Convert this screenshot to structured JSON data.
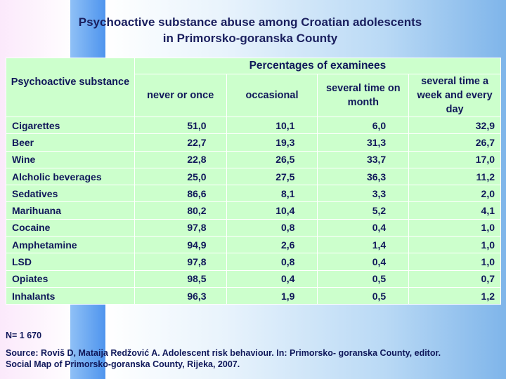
{
  "title": {
    "line1": "Psychoactive substance abuse among Croatian adolescents",
    "line2": "in Primorsko-goranska County"
  },
  "table": {
    "substance_header": "Psychoactive substance",
    "group_header": "Percentages of examinees",
    "columns": [
      "never or once",
      "occasional",
      "several time on month",
      "several time a week and every day"
    ],
    "rows": [
      {
        "name": "Cigarettes",
        "values": [
          "51,0",
          "10,1",
          "6,0",
          "32,9"
        ]
      },
      {
        "name": "Beer",
        "values": [
          "22,7",
          "19,3",
          "31,3",
          "26,7"
        ]
      },
      {
        "name": "Wine",
        "values": [
          "22,8",
          "26,5",
          "33,7",
          "17,0"
        ]
      },
      {
        "name": "Alcholic beverages",
        "values": [
          "25,0",
          "27,5",
          "36,3",
          "11,2"
        ]
      },
      {
        "name": "Sedatives",
        "values": [
          "86,6",
          "8,1",
          "3,3",
          "2,0"
        ]
      },
      {
        "name": "Marihuana",
        "values": [
          "80,2",
          "10,4",
          "5,2",
          "4,1"
        ]
      },
      {
        "name": "Cocaine",
        "values": [
          "97,8",
          "0,8",
          "0,4",
          "1,0"
        ]
      },
      {
        "name": "Amphetamine",
        "values": [
          "94,9",
          "2,6",
          "1,4",
          "1,0"
        ]
      },
      {
        "name": "LSD",
        "values": [
          "97,8",
          "0,8",
          "0,4",
          "1,0"
        ]
      },
      {
        "name": "Opiates",
        "values": [
          "98,5",
          "0,4",
          "0,5",
          "0,7"
        ]
      },
      {
        "name": "Inhalants",
        "values": [
          "96,3",
          "1,9",
          "0,5",
          "1,2"
        ]
      }
    ]
  },
  "note": "N= 1 670",
  "source": {
    "line1": "Source: Roviš D, Mataija  Redžović A. Adolescent risk behaviour. In: Primorsko- goranska County, editor.",
    "line2": "Social Map of Primorsko-goranska County, Rijeka, 2007."
  },
  "colors": {
    "table_fill": "#ccffcc",
    "text": "#10185a",
    "title": "#1a1f5e"
  }
}
